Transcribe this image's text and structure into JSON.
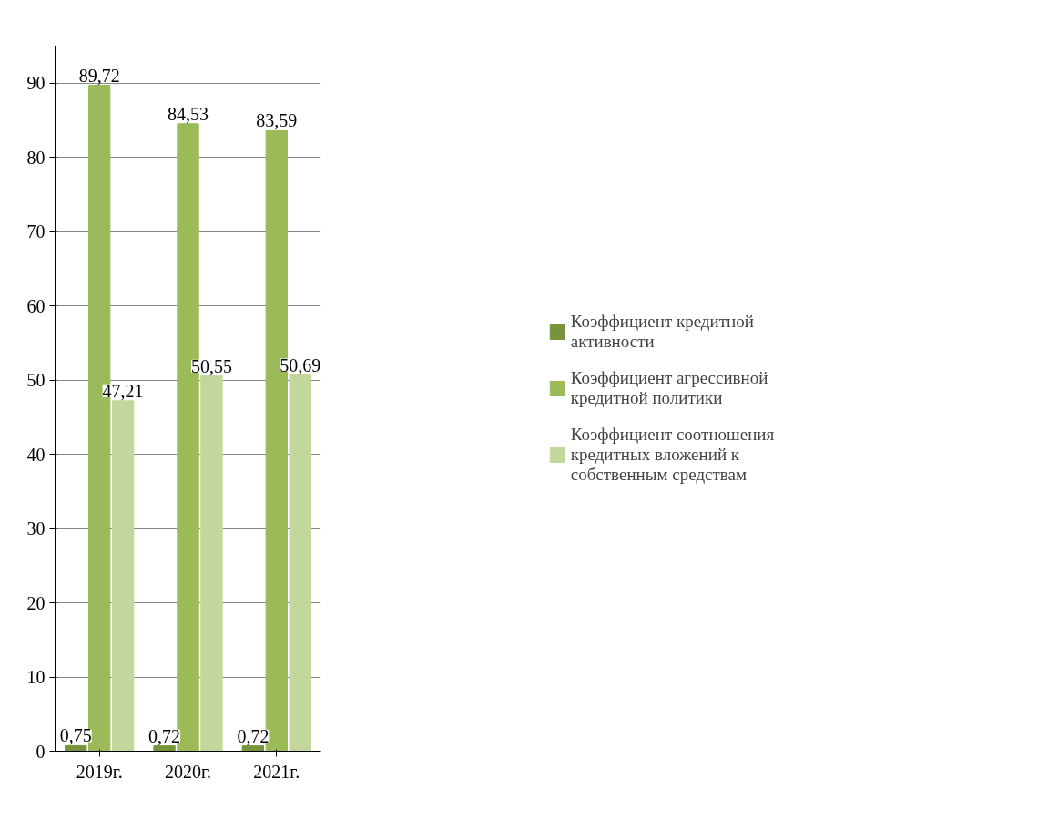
{
  "chart_data": {
    "type": "bar",
    "categories": [
      "2019г.",
      "2020г.",
      "2021г."
    ],
    "series": [
      {
        "name": "Коэффициент кредитной активности",
        "color": "#77933c",
        "values": [
          0.75,
          0.72,
          0.72
        ],
        "value_labels": [
          "0,75",
          "0,72",
          "0,72"
        ]
      },
      {
        "name": "Коэффициент агрессивной кредитной политики",
        "color": "#9bbb59",
        "values": [
          89.72,
          84.53,
          83.59
        ],
        "value_labels": [
          "89,72",
          "84,53",
          "83,59"
        ]
      },
      {
        "name": "Коэффициент соотношения кредитных вложений к собственным средствам",
        "color": "#c3d69b",
        "values": [
          47.21,
          50.55,
          50.69
        ],
        "value_labels": [
          "47,21",
          "50,55",
          "50,69"
        ]
      }
    ],
    "ylim": [
      0,
      95
    ],
    "yticks": [
      0,
      10,
      20,
      30,
      40,
      50,
      60,
      70,
      80,
      90
    ],
    "grid": "y",
    "legend": "right"
  }
}
